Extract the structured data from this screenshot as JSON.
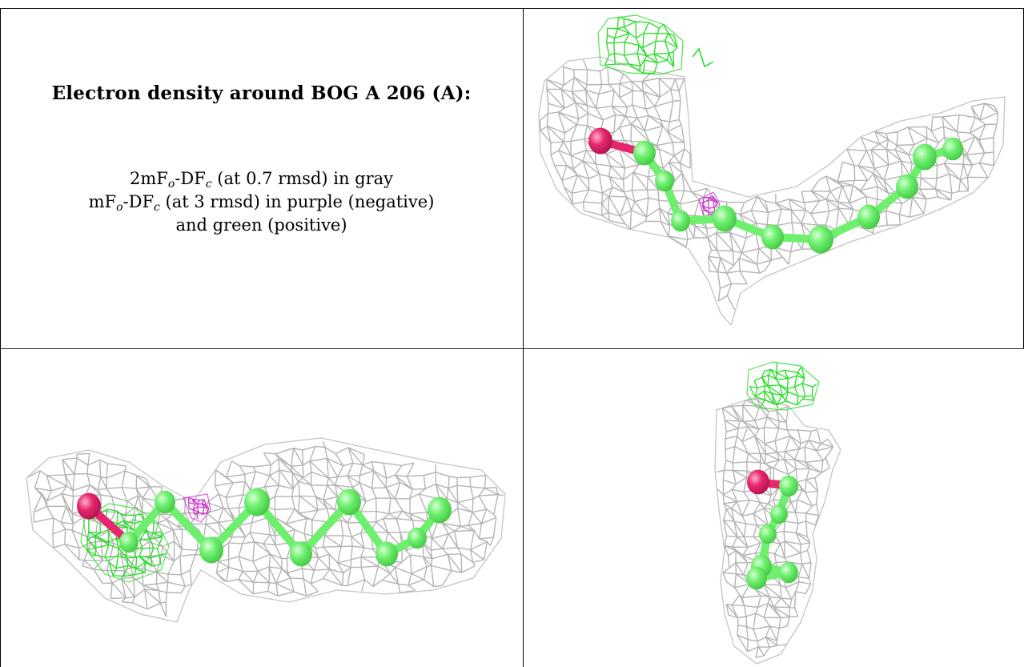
{
  "figure": {
    "title": "Electron density around BOG A 206 (A):",
    "map_2fo_fc": {
      "prefix": "2mF",
      "sub1": "o",
      "mid": "-DF",
      "sub2": "c",
      "suffix": " (at 0.7 rmsd) in gray"
    },
    "map_fo_fc": {
      "prefix": "mF",
      "sub1": "o",
      "mid": "-DF",
      "sub2": "c",
      "suffix": " (at 3 rmsd) in purple (negative)"
    },
    "map_fo_fc_cont": "and green (positive)"
  },
  "colors": {
    "mesh_gray": "#b4b4b4",
    "mesh_gray_dark": "#8c8c8c",
    "difference_positive": "#22dd22",
    "difference_negative": "#cc33cc",
    "carbon": "#6ef06e",
    "carbon_dark": "#44c844",
    "oxygen": "#e8266e",
    "oxygen_dark": "#b01450",
    "border": "#000000"
  },
  "panels": [
    "view-top",
    "view-side",
    "view-end"
  ]
}
